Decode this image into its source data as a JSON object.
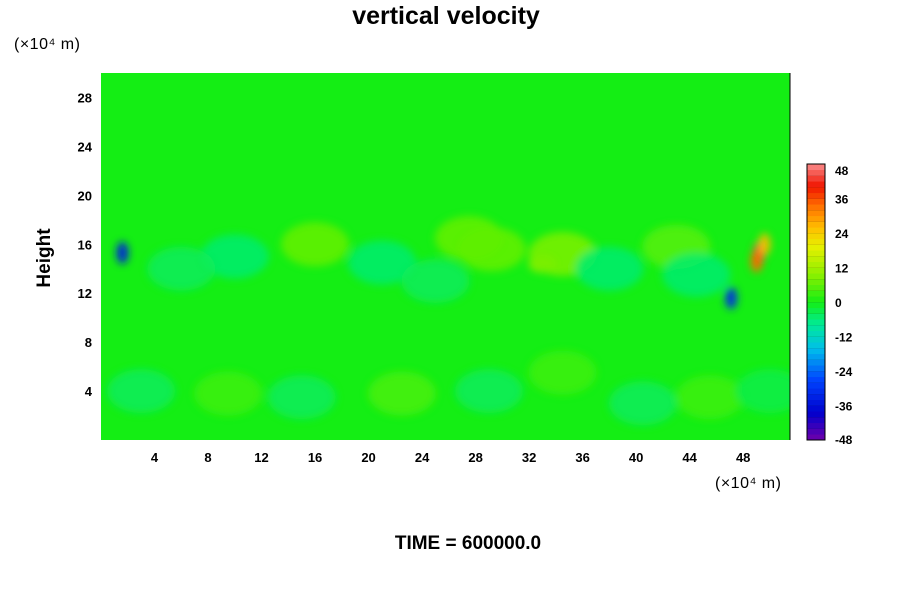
{
  "chart_data": {
    "type": "heatmap",
    "title": "vertical velocity",
    "ylabel": "Height",
    "xlabel": "",
    "y_unit_label": "(×10⁴ m)",
    "x_unit_label": "(×10⁴ m)",
    "time_label": "TIME = 600000.0",
    "xlim": [
      0,
      51.5
    ],
    "ylim": [
      0,
      30
    ],
    "x_ticks": [
      4,
      8,
      12,
      16,
      20,
      24,
      28,
      32,
      36,
      40,
      44,
      48
    ],
    "y_ticks": [
      4,
      8,
      12,
      16,
      20,
      24,
      28
    ],
    "x_tick_labels": [
      "4",
      "8",
      "12",
      "16",
      "20",
      "24",
      "28",
      "32",
      "36",
      "40",
      "44",
      "48"
    ],
    "y_tick_labels": [
      "4",
      "8",
      "12",
      "16",
      "20",
      "24",
      "28"
    ],
    "colorbar": {
      "min": -48,
      "max": 48,
      "ticks": [
        48,
        36,
        24,
        12,
        0,
        -12,
        -24,
        -36,
        -48
      ],
      "tick_labels": [
        "48",
        "36",
        "24",
        "12",
        "0",
        "-12",
        "-24",
        "-36",
        "-48"
      ],
      "placement": "right"
    },
    "background_value": 0,
    "features": [
      {
        "x": 49.2,
        "y": 15.3,
        "value": 44
      },
      {
        "x": 49.0,
        "y": 14.6,
        "value": 34
      },
      {
        "x": 49.6,
        "y": 16.0,
        "value": 26
      },
      {
        "x": 1.6,
        "y": 15.3,
        "value": -34
      },
      {
        "x": 47.1,
        "y": 11.6,
        "value": -32
      },
      {
        "x": 33.0,
        "y": 14.4,
        "value": 10
      },
      {
        "x": 34.5,
        "y": 15.2,
        "value": 8
      },
      {
        "x": 16.0,
        "y": 16.0,
        "value": 6
      },
      {
        "x": 27.5,
        "y": 16.5,
        "value": 6
      },
      {
        "x": 29.2,
        "y": 15.6,
        "value": 6
      },
      {
        "x": 43.0,
        "y": 15.8,
        "value": 5
      },
      {
        "x": 3.0,
        "y": 4.0,
        "value": -4
      },
      {
        "x": 9.5,
        "y": 3.8,
        "value": 3
      },
      {
        "x": 15.0,
        "y": 3.5,
        "value": -4
      },
      {
        "x": 22.5,
        "y": 3.8,
        "value": 4
      },
      {
        "x": 29.0,
        "y": 4.0,
        "value": -4
      },
      {
        "x": 34.5,
        "y": 5.5,
        "value": 3
      },
      {
        "x": 40.5,
        "y": 3.0,
        "value": -4
      },
      {
        "x": 45.5,
        "y": 3.5,
        "value": 3
      },
      {
        "x": 50.0,
        "y": 4.0,
        "value": -3
      },
      {
        "x": 10.0,
        "y": 15.0,
        "value": -5
      },
      {
        "x": 21.0,
        "y": 14.5,
        "value": -5
      },
      {
        "x": 38.0,
        "y": 14.0,
        "value": -5
      },
      {
        "x": 25.0,
        "y": 13.0,
        "value": -4
      },
      {
        "x": 44.5,
        "y": 13.5,
        "value": -5
      },
      {
        "x": 6.0,
        "y": 14.0,
        "value": -4
      }
    ]
  }
}
